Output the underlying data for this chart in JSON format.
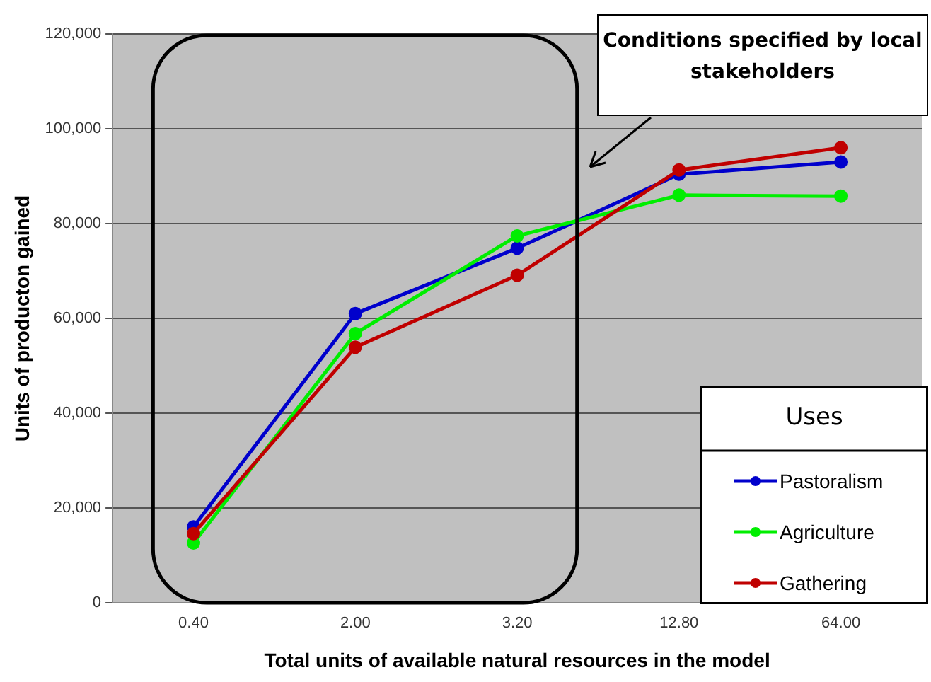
{
  "chart_data": {
    "type": "line",
    "xlabel": "Total units of available natural resources in the model",
    "ylabel": "Units of producton gained",
    "legend_title": "Uses",
    "annotations": [
      "Conditions specified by local stakeholders"
    ],
    "categories": [
      "0.40",
      "2.00",
      "3.20",
      "12.80",
      "64.00"
    ],
    "series": [
      {
        "name": "Pastoralism",
        "color": "#0000cc",
        "values": [
          16000,
          61000,
          74800,
          90400,
          93000
        ]
      },
      {
        "name": "Agriculture",
        "color": "#00ee00",
        "values": [
          12600,
          56800,
          77400,
          86000,
          85800
        ]
      },
      {
        "name": "Gathering",
        "color": "#c00000",
        "values": [
          14600,
          53900,
          69100,
          91300,
          96000
        ]
      }
    ],
    "ylim": [
      0,
      120000
    ],
    "yticks": [
      0,
      {
        "value": 20000,
        "label": "20,000"
      },
      {
        "value": 40000,
        "label": "40,000"
      },
      {
        "value": 60000,
        "label": "60,000"
      },
      {
        "value": 80000,
        "label": "80,000"
      },
      {
        "value": 100000,
        "label": "100,000"
      },
      {
        "value": 120000,
        "label": "120,000"
      }
    ],
    "grid": "y",
    "legend": "bottom right",
    "marker": "circle",
    "line_style": "solid"
  }
}
